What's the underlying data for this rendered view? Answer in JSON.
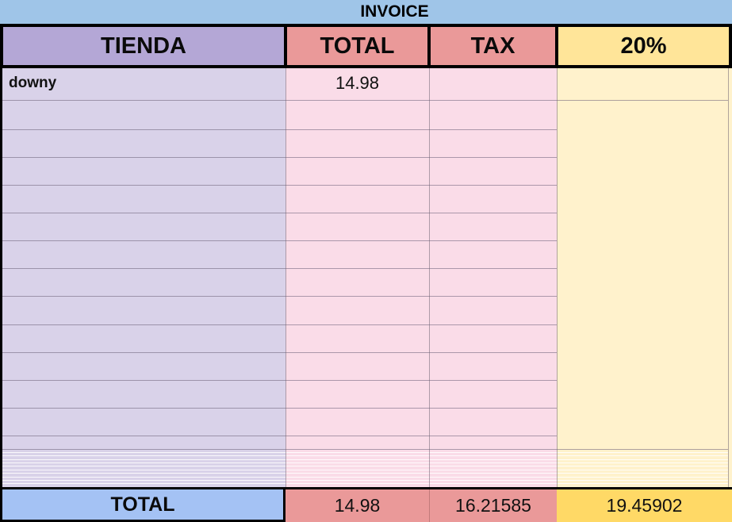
{
  "title": "INVOICE",
  "columns": [
    "TIENDA",
    "TOTAL",
    "TAX",
    "20%"
  ],
  "first_row": {
    "store": "downy",
    "total": "14.98",
    "tax": "",
    "pct": ""
  },
  "footer": {
    "label": "TOTAL",
    "total": "14.98",
    "tax": "16.21585",
    "pct": "19.45902"
  },
  "colors": {
    "page_background": "#9fc5e8",
    "header_tienda": "#b4a7d6",
    "header_total_tax": "#ea9999",
    "header_pct": "#ffe599",
    "cell_purple": "#d9d2e9",
    "cell_pink": "#fadce8",
    "cell_yellow": "#fff2cc",
    "footer_blue": "#a4c2f4",
    "footer_red": "#ea9999",
    "footer_yellow": "#ffd966",
    "border": "#000000"
  }
}
